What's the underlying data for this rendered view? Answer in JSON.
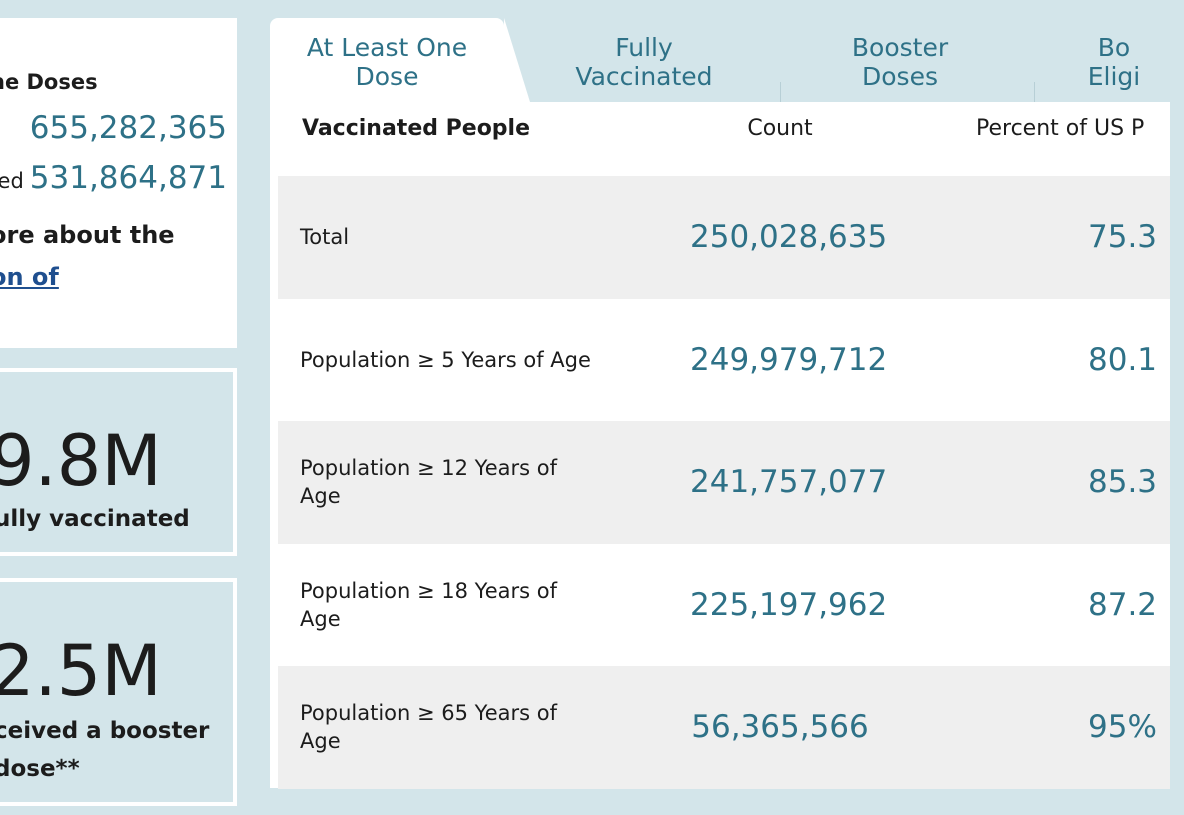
{
  "left": {
    "doses": {
      "title_fragment": "ne Doses",
      "rows": [
        {
          "label": "",
          "value": "655,282,365"
        },
        {
          "label": "ed",
          "value": "531,864,871"
        }
      ],
      "more_line1": "ore about the",
      "more_link": "on of"
    },
    "fully": {
      "big": "9.8M",
      "caption": "ully vaccinated"
    },
    "booster": {
      "big": "2.5M",
      "caption_line1": "ceived a booster",
      "caption_line2": "dose**"
    }
  },
  "tabs": [
    {
      "line1": "At Least One",
      "line2": "Dose"
    },
    {
      "line1": "Fully",
      "line2": "Vaccinated"
    },
    {
      "line1": "Booster",
      "line2": "Doses"
    },
    {
      "line1": "Bo",
      "line2": "Eligi"
    }
  ],
  "table": {
    "headers": {
      "people": "Vaccinated People",
      "count": "Count",
      "percent": "Percent of US P"
    },
    "rows": [
      {
        "label": "Total",
        "count": "250,028,635",
        "percent": "75.3"
      },
      {
        "label": "Population ≥ 5 Years of Age",
        "count": "249,979,712",
        "percent": "80.1"
      },
      {
        "label": "Population ≥ 12 Years of Age",
        "count": "241,757,077",
        "percent": "85.3"
      },
      {
        "label": "Population ≥ 18 Years of Age",
        "count": "225,197,962",
        "percent": "87.2"
      },
      {
        "label": "Population ≥ 65 Years of Age",
        "count": "56,365,566",
        "percent": "95%"
      }
    ]
  }
}
